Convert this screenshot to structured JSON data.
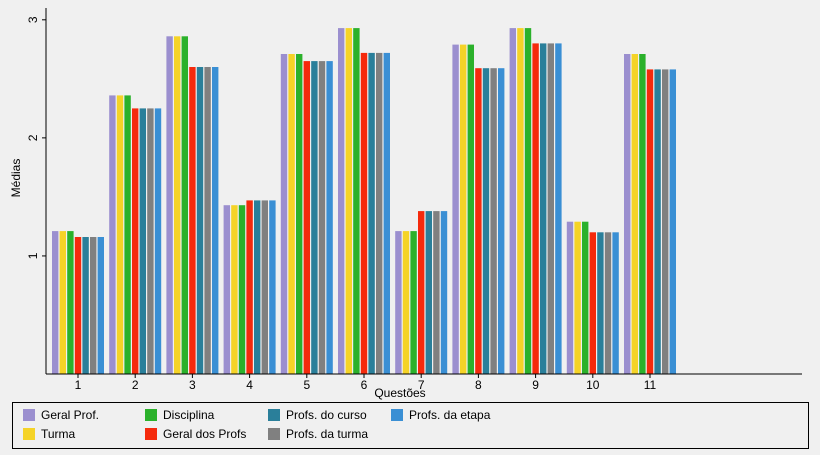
{
  "chart_data": {
    "type": "bar",
    "title": "",
    "xlabel": "Questões",
    "ylabel": "Médias",
    "categories": [
      "1",
      "2",
      "3",
      "4",
      "5",
      "6",
      "7",
      "8",
      "9",
      "10",
      "11"
    ],
    "ylim": [
      0,
      3.1
    ],
    "yticks": [
      1,
      2,
      3
    ],
    "grid": false,
    "legend_position": "bottom",
    "series": [
      {
        "name": "Geral Prof.",
        "color": "#9b8fcf",
        "values": [
          1.21,
          2.36,
          2.86,
          1.43,
          2.71,
          2.93,
          1.21,
          2.79,
          2.93,
          1.29,
          2.71
        ]
      },
      {
        "name": "Turma",
        "color": "#f5d327",
        "values": [
          1.21,
          2.36,
          2.86,
          1.43,
          2.71,
          2.93,
          1.21,
          2.79,
          2.93,
          1.29,
          2.71
        ]
      },
      {
        "name": "Disciplina",
        "color": "#2bb12b",
        "values": [
          1.21,
          2.36,
          2.86,
          1.43,
          2.71,
          2.93,
          1.21,
          2.79,
          2.93,
          1.29,
          2.71
        ]
      },
      {
        "name": "Geral dos Profs",
        "color": "#f52a0c",
        "values": [
          1.16,
          2.25,
          2.6,
          1.47,
          2.65,
          2.72,
          1.38,
          2.59,
          2.8,
          1.2,
          2.58
        ]
      },
      {
        "name": "Profs. do curso",
        "color": "#2a7f9a",
        "values": [
          1.16,
          2.25,
          2.6,
          1.47,
          2.65,
          2.72,
          1.38,
          2.59,
          2.8,
          1.2,
          2.58
        ]
      },
      {
        "name": "Profs. da turma",
        "color": "#808080",
        "values": [
          1.16,
          2.25,
          2.6,
          1.47,
          2.65,
          2.72,
          1.38,
          2.59,
          2.8,
          1.2,
          2.58
        ]
      },
      {
        "name": "Profs. da etapa",
        "color": "#3a8fd4",
        "values": [
          1.16,
          2.25,
          2.6,
          1.47,
          2.65,
          2.72,
          1.38,
          2.59,
          2.8,
          1.2,
          2.58
        ]
      }
    ]
  }
}
